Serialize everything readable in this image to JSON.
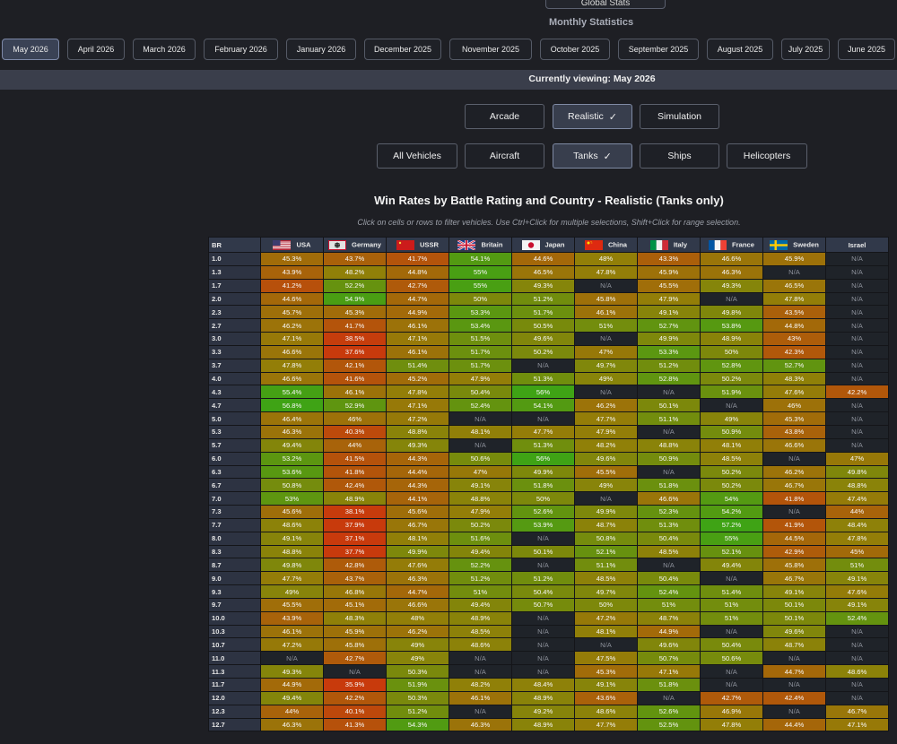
{
  "top_button_label": "Global Stats",
  "section_title": "Monthly Statistics",
  "months": [
    "May 2026",
    "April 2026",
    "March 2026",
    "February 2026",
    "January 2026",
    "December 2025",
    "November 2025",
    "October 2025",
    "September 2025",
    "August 2025",
    "July 2025",
    "June 2025"
  ],
  "active_month": "May 2026",
  "viewing_text": "Currently viewing: May 2026",
  "modes": [
    "Arcade",
    "Realistic",
    "Simulation"
  ],
  "selected_mode": "Realistic",
  "vehicle_types": [
    "All Vehicles",
    "Aircraft",
    "Tanks",
    "Ships",
    "Helicopters"
  ],
  "selected_vehicle_type": "Tanks",
  "check_glyph": "✓",
  "chart_title": "Win Rates by Battle Rating and Country - Realistic (Tanks only)",
  "hint": "Click on cells or rows to filter vehicles. Use Ctrl+Click for multiple selections, Shift+Click for range selection.",
  "colors": {
    "low": "#c83a0c",
    "mid": "#927f08",
    "high": "#3fa315",
    "na": "#1f2329",
    "header": "#31394a"
  },
  "chart_data": {
    "type": "heatmap",
    "row_header": "BR",
    "columns": [
      "USA",
      "Germany",
      "USSR",
      "Britain",
      "Japan",
      "China",
      "Italy",
      "France",
      "Sweden",
      "Israel"
    ],
    "flag_icons": [
      "usa-flag-icon",
      "germany-flag-icon",
      "ussr-flag-icon",
      "britain-flag-icon",
      "japan-flag-icon",
      "china-flag-icon",
      "italy-flag-icon",
      "france-flag-icon",
      "sweden-flag-icon",
      ""
    ],
    "rows": [
      {
        "br": "1.0",
        "values": [
          "45.3%",
          "43.7%",
          "41.7%",
          "54.1%",
          "44.6%",
          "48%",
          "43.3%",
          "46.6%",
          "45.9%",
          "N/A"
        ]
      },
      {
        "br": "1.3",
        "values": [
          "43.9%",
          "48.2%",
          "44.8%",
          "55%",
          "46.5%",
          "47.8%",
          "45.9%",
          "46.3%",
          "N/A",
          "N/A"
        ]
      },
      {
        "br": "1.7",
        "values": [
          "41.2%",
          "52.2%",
          "42.7%",
          "55%",
          "49.3%",
          "N/A",
          "45.5%",
          "49.3%",
          "46.5%",
          "N/A"
        ]
      },
      {
        "br": "2.0",
        "values": [
          "44.6%",
          "54.9%",
          "44.7%",
          "50%",
          "51.2%",
          "45.8%",
          "47.9%",
          "N/A",
          "47.8%",
          "N/A"
        ]
      },
      {
        "br": "2.3",
        "values": [
          "45.7%",
          "45.3%",
          "44.9%",
          "53.3%",
          "51.7%",
          "46.1%",
          "49.1%",
          "49.8%",
          "43.5%",
          "N/A"
        ]
      },
      {
        "br": "2.7",
        "values": [
          "46.2%",
          "41.7%",
          "46.1%",
          "53.4%",
          "50.5%",
          "51%",
          "52.7%",
          "53.8%",
          "44.8%",
          "N/A"
        ]
      },
      {
        "br": "3.0",
        "values": [
          "47.1%",
          "38.5%",
          "47.1%",
          "51.5%",
          "49.6%",
          "N/A",
          "49.9%",
          "48.9%",
          "43%",
          "N/A"
        ]
      },
      {
        "br": "3.3",
        "values": [
          "46.6%",
          "37.6%",
          "46.1%",
          "51.7%",
          "50.2%",
          "47%",
          "53.3%",
          "50%",
          "42.3%",
          "N/A"
        ]
      },
      {
        "br": "3.7",
        "values": [
          "47.8%",
          "42.1%",
          "51.4%",
          "51.7%",
          "N/A",
          "49.7%",
          "51.2%",
          "52.8%",
          "52.7%",
          "N/A"
        ]
      },
      {
        "br": "4.0",
        "values": [
          "46.6%",
          "41.6%",
          "45.2%",
          "47.9%",
          "51.3%",
          "49%",
          "52.8%",
          "50.2%",
          "48.3%",
          "N/A"
        ]
      },
      {
        "br": "4.3",
        "values": [
          "55.4%",
          "46.1%",
          "47.8%",
          "50.4%",
          "56%",
          "N/A",
          "N/A",
          "51.9%",
          "47.6%",
          "42.2%"
        ]
      },
      {
        "br": "4.7",
        "values": [
          "56.8%",
          "52.9%",
          "47.1%",
          "52.4%",
          "54.1%",
          "46.2%",
          "50.1%",
          "N/A",
          "46%",
          "N/A"
        ]
      },
      {
        "br": "5.0",
        "values": [
          "46.4%",
          "46%",
          "47.2%",
          "N/A",
          "N/A",
          "47.7%",
          "51.1%",
          "49%",
          "45.3%",
          "N/A"
        ]
      },
      {
        "br": "5.3",
        "values": [
          "46.3%",
          "40.3%",
          "48.8%",
          "48.1%",
          "47.7%",
          "47.9%",
          "N/A",
          "50.9%",
          "43.8%",
          "N/A"
        ]
      },
      {
        "br": "5.7",
        "values": [
          "49.4%",
          "44%",
          "49.3%",
          "N/A",
          "51.3%",
          "48.2%",
          "48.8%",
          "48.1%",
          "46.6%",
          "N/A"
        ]
      },
      {
        "br": "6.0",
        "values": [
          "53.2%",
          "41.5%",
          "44.3%",
          "50.6%",
          "56%",
          "49.6%",
          "50.9%",
          "48.5%",
          "N/A",
          "47%"
        ]
      },
      {
        "br": "6.3",
        "values": [
          "53.6%",
          "41.8%",
          "44.4%",
          "47%",
          "49.9%",
          "45.5%",
          "N/A",
          "50.2%",
          "46.2%",
          "49.8%"
        ]
      },
      {
        "br": "6.7",
        "values": [
          "50.8%",
          "42.4%",
          "44.3%",
          "49.1%",
          "51.8%",
          "49%",
          "51.8%",
          "50.2%",
          "46.7%",
          "48.8%"
        ]
      },
      {
        "br": "7.0",
        "values": [
          "53%",
          "48.9%",
          "44.1%",
          "48.8%",
          "50%",
          "N/A",
          "46.6%",
          "54%",
          "41.8%",
          "47.4%"
        ]
      },
      {
        "br": "7.3",
        "values": [
          "45.6%",
          "38.1%",
          "45.6%",
          "47.9%",
          "52.6%",
          "49.9%",
          "52.3%",
          "54.2%",
          "N/A",
          "44%"
        ]
      },
      {
        "br": "7.7",
        "values": [
          "48.6%",
          "37.9%",
          "46.7%",
          "50.2%",
          "53.9%",
          "48.7%",
          "51.3%",
          "57.2%",
          "41.9%",
          "48.4%"
        ]
      },
      {
        "br": "8.0",
        "values": [
          "49.1%",
          "37.1%",
          "48.1%",
          "51.6%",
          "N/A",
          "50.8%",
          "50.4%",
          "55%",
          "44.5%",
          "47.8%"
        ]
      },
      {
        "br": "8.3",
        "values": [
          "48.8%",
          "37.7%",
          "49.9%",
          "49.4%",
          "50.1%",
          "52.1%",
          "48.5%",
          "52.1%",
          "42.9%",
          "45%"
        ]
      },
      {
        "br": "8.7",
        "values": [
          "49.8%",
          "42.8%",
          "47.6%",
          "52.2%",
          "N/A",
          "51.1%",
          "N/A",
          "49.4%",
          "45.8%",
          "51%"
        ]
      },
      {
        "br": "9.0",
        "values": [
          "47.7%",
          "43.7%",
          "46.3%",
          "51.2%",
          "51.2%",
          "48.5%",
          "50.4%",
          "N/A",
          "46.7%",
          "49.1%"
        ]
      },
      {
        "br": "9.3",
        "values": [
          "49%",
          "46.8%",
          "44.7%",
          "51%",
          "50.4%",
          "49.7%",
          "52.4%",
          "51.4%",
          "49.1%",
          "47.6%"
        ]
      },
      {
        "br": "9.7",
        "values": [
          "45.5%",
          "45.1%",
          "46.6%",
          "49.4%",
          "50.7%",
          "50%",
          "51%",
          "51%",
          "50.1%",
          "49.1%"
        ]
      },
      {
        "br": "10.0",
        "values": [
          "43.9%",
          "48.3%",
          "48%",
          "48.9%",
          "N/A",
          "47.2%",
          "48.7%",
          "51%",
          "50.1%",
          "52.4%"
        ]
      },
      {
        "br": "10.3",
        "values": [
          "46.1%",
          "45.9%",
          "46.2%",
          "48.5%",
          "N/A",
          "48.1%",
          "44.9%",
          "N/A",
          "49.6%",
          "N/A"
        ]
      },
      {
        "br": "10.7",
        "values": [
          "47.2%",
          "45.8%",
          "49%",
          "48.6%",
          "N/A",
          "N/A",
          "49.6%",
          "50.4%",
          "48.7%",
          "N/A"
        ]
      },
      {
        "br": "11.0",
        "values": [
          "N/A",
          "42.7%",
          "49%",
          "N/A",
          "N/A",
          "47.5%",
          "50.7%",
          "50.6%",
          "N/A",
          "N/A"
        ]
      },
      {
        "br": "11.3",
        "values": [
          "49.3%",
          "N/A",
          "50.3%",
          "N/A",
          "N/A",
          "45.3%",
          "47.1%",
          "N/A",
          "44.7%",
          "48.6%"
        ]
      },
      {
        "br": "11.7",
        "values": [
          "44.9%",
          "35.9%",
          "51.9%",
          "48.2%",
          "48.4%",
          "49.1%",
          "51.8%",
          "N/A",
          "N/A",
          "N/A"
        ]
      },
      {
        "br": "12.0",
        "values": [
          "49.4%",
          "42.2%",
          "50.3%",
          "46.1%",
          "48.9%",
          "43.6%",
          "N/A",
          "42.7%",
          "42.4%",
          "N/A"
        ]
      },
      {
        "br": "12.3",
        "values": [
          "44%",
          "40.1%",
          "51.2%",
          "N/A",
          "49.2%",
          "48.6%",
          "52.6%",
          "46.9%",
          "N/A",
          "46.7%"
        ]
      },
      {
        "br": "12.7",
        "values": [
          "46.3%",
          "41.3%",
          "54.3%",
          "46.3%",
          "48.9%",
          "47.7%",
          "52.5%",
          "47.8%",
          "44.4%",
          "47.1%"
        ]
      }
    ]
  }
}
